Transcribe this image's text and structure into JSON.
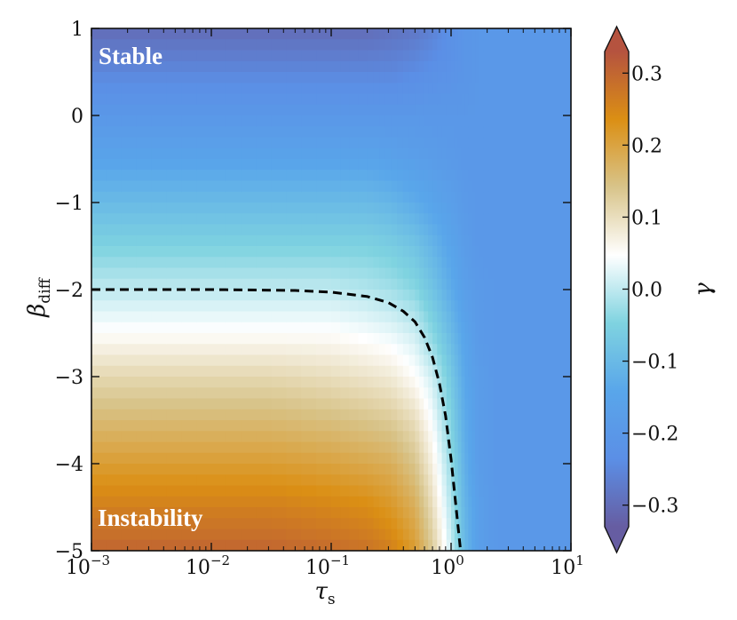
{
  "chart_data": {
    "type": "heatmap",
    "title": "",
    "xlabel": "τ",
    "xlabel_sub": "s",
    "ylabel": "β",
    "ylabel_sub": "diff",
    "xscale": "log",
    "xlim": [
      0.001,
      10
    ],
    "ylim": [
      -5,
      1
    ],
    "xticks": [
      0.001,
      0.01,
      0.1,
      1,
      10
    ],
    "xtick_labels": [
      {
        "base": "10",
        "exp": "−3"
      },
      {
        "base": "10",
        "exp": "−2"
      },
      {
        "base": "10",
        "exp": "−1"
      },
      {
        "base": "10",
        "exp": "0"
      },
      {
        "base": "10",
        "exp": "1"
      }
    ],
    "yticks": [
      1,
      0,
      -1,
      -2,
      -3,
      -4,
      -5
    ],
    "ytick_labels": [
      "1",
      "0",
      "−1",
      "−2",
      "−3",
      "−4",
      "−5"
    ],
    "colorbar": {
      "label": "γ",
      "range": [
        -0.33,
        0.33
      ],
      "ticks": [
        0.3,
        0.2,
        0.1,
        0.0,
        -0.1,
        -0.2,
        -0.3
      ],
      "tick_labels": [
        "0.3",
        "0.2",
        "0.1",
        "0.0",
        "−0.1",
        "−0.2",
        "−0.3"
      ],
      "extend": "both",
      "colors": [
        "#665da2",
        "#5b8fe6",
        "#59a6ea",
        "#7fd3e0",
        "#ffffff",
        "#d8c48a",
        "#db8f14",
        "#b5533f"
      ]
    },
    "grid": {
      "x": [
        0.001,
        0.00316,
        0.01,
        0.0316,
        0.1,
        0.2,
        0.316,
        0.5,
        0.7,
        1.0,
        1.3,
        1.7,
        2.5,
        4,
        10
      ],
      "y": [
        1,
        0.5,
        0,
        -0.5,
        -1,
        -1.5,
        -2,
        -2.5,
        -3,
        -3.5,
        -4,
        -4.5,
        -5
      ],
      "gamma": [
        [
          -0.3,
          -0.3,
          -0.3,
          -0.3,
          -0.3,
          -0.3,
          -0.29,
          -0.28,
          -0.26,
          -0.23,
          -0.21,
          -0.2,
          -0.2,
          -0.2,
          -0.2
        ],
        [
          -0.25,
          -0.25,
          -0.25,
          -0.25,
          -0.25,
          -0.25,
          -0.25,
          -0.24,
          -0.23,
          -0.22,
          -0.21,
          -0.2,
          -0.2,
          -0.2,
          -0.2
        ],
        [
          -0.2,
          -0.2,
          -0.2,
          -0.2,
          -0.2,
          -0.2,
          -0.2,
          -0.2,
          -0.2,
          -0.2,
          -0.2,
          -0.2,
          -0.2,
          -0.2,
          -0.2
        ],
        [
          -0.15,
          -0.15,
          -0.15,
          -0.15,
          -0.15,
          -0.15,
          -0.16,
          -0.17,
          -0.18,
          -0.19,
          -0.2,
          -0.2,
          -0.2,
          -0.2,
          -0.2
        ],
        [
          -0.1,
          -0.1,
          -0.1,
          -0.1,
          -0.1,
          -0.1,
          -0.11,
          -0.13,
          -0.15,
          -0.17,
          -0.19,
          -0.2,
          -0.2,
          -0.2,
          -0.2
        ],
        [
          -0.05,
          -0.05,
          -0.05,
          -0.05,
          -0.05,
          -0.05,
          -0.06,
          -0.08,
          -0.11,
          -0.15,
          -0.18,
          -0.2,
          -0.2,
          -0.2,
          -0.2
        ],
        [
          0.0,
          0.0,
          0.0,
          0.0,
          0.0,
          -0.01,
          -0.02,
          -0.04,
          -0.08,
          -0.13,
          -0.17,
          -0.19,
          -0.2,
          -0.2,
          -0.2
        ],
        [
          0.05,
          0.05,
          0.05,
          0.05,
          0.05,
          0.04,
          0.03,
          0.01,
          -0.04,
          -0.1,
          -0.15,
          -0.19,
          -0.2,
          -0.2,
          -0.2
        ],
        [
          0.11,
          0.11,
          0.11,
          0.11,
          0.1,
          0.09,
          0.08,
          0.05,
          0.01,
          -0.07,
          -0.14,
          -0.18,
          -0.2,
          -0.2,
          -0.2
        ],
        [
          0.16,
          0.16,
          0.16,
          0.16,
          0.15,
          0.14,
          0.13,
          0.1,
          0.04,
          -0.05,
          -0.13,
          -0.18,
          -0.2,
          -0.2,
          -0.2
        ],
        [
          0.21,
          0.21,
          0.21,
          0.21,
          0.2,
          0.19,
          0.18,
          0.14,
          0.07,
          -0.03,
          -0.12,
          -0.18,
          -0.2,
          -0.2,
          -0.2
        ],
        [
          0.26,
          0.26,
          0.26,
          0.26,
          0.25,
          0.24,
          0.22,
          0.18,
          0.1,
          -0.01,
          -0.11,
          -0.17,
          -0.2,
          -0.2,
          -0.2
        ],
        [
          0.3,
          0.3,
          0.3,
          0.3,
          0.29,
          0.28,
          0.26,
          0.21,
          0.13,
          0.01,
          -0.1,
          -0.17,
          -0.2,
          -0.2,
          -0.2
        ]
      ]
    },
    "contour_gamma0": {
      "style": "dashed",
      "color": "#000000",
      "x": [
        0.001,
        0.01,
        0.05,
        0.1,
        0.2,
        0.3,
        0.4,
        0.5,
        0.6,
        0.7,
        0.8,
        0.9,
        1.0,
        1.1,
        1.2
      ],
      "y": [
        -2.0,
        -2.0,
        -2.01,
        -2.03,
        -2.08,
        -2.15,
        -2.25,
        -2.37,
        -2.55,
        -2.78,
        -3.08,
        -3.45,
        -3.95,
        -4.5,
        -5.0
      ]
    },
    "annotations": [
      "Stable",
      "Instability"
    ]
  }
}
